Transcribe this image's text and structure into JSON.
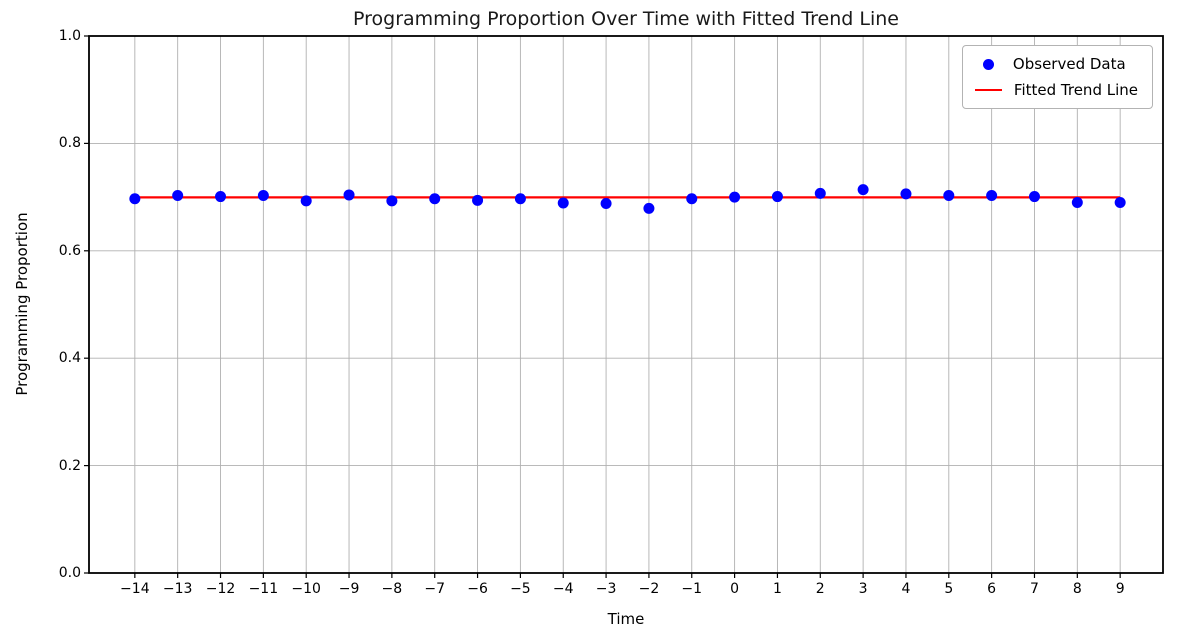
{
  "chart_data": {
    "type": "scatter",
    "title": "Programming Proportion Over Time with Fitted Trend Line",
    "xlabel": "Time",
    "ylabel": "Programming Proportion",
    "xlim": [
      -15.07,
      10.0
    ],
    "ylim": [
      0.0,
      1.0
    ],
    "grid": true,
    "legend_position": "upper right",
    "x": [
      -14,
      -13,
      -12,
      -11,
      -10,
      -9,
      -8,
      -7,
      -6,
      -5,
      -4,
      -3,
      -2,
      -1,
      0,
      1,
      2,
      3,
      4,
      5,
      6,
      7,
      8,
      9
    ],
    "y": [
      0.697,
      0.703,
      0.701,
      0.703,
      0.693,
      0.704,
      0.693,
      0.697,
      0.694,
      0.697,
      0.689,
      0.688,
      0.679,
      0.697,
      0.7,
      0.701,
      0.707,
      0.714,
      0.706,
      0.703,
      0.703,
      0.701,
      0.69,
      0.69
    ],
    "points_label": "Observed Data",
    "points_color": "#0000ff",
    "trend_line": {
      "label": "Fitted Trend Line",
      "color": "#ff0000",
      "x": [
        -14,
        9
      ],
      "y": [
        0.6995,
        0.6995
      ]
    },
    "xticks": {
      "values": [
        -14,
        -13,
        -12,
        -11,
        -10,
        -9,
        -8,
        -7,
        -6,
        -5,
        -4,
        -3,
        -2,
        -1,
        0,
        1,
        2,
        3,
        4,
        5,
        6,
        7,
        8,
        9
      ],
      "labels": [
        "−14",
        "−13",
        "−12",
        "−11",
        "−10",
        "−9",
        "−8",
        "−7",
        "−6",
        "−5",
        "−4",
        "−3",
        "−2",
        "−1",
        "0",
        "1",
        "2",
        "3",
        "4",
        "5",
        "6",
        "7",
        "8",
        "9"
      ]
    },
    "yticks": {
      "values": [
        0.0,
        0.2,
        0.4,
        0.6,
        0.8,
        1.0
      ],
      "labels": [
        "0.0",
        "0.2",
        "0.4",
        "0.6",
        "0.8",
        "1.0"
      ]
    },
    "legend": [
      {
        "label": "Observed Data",
        "marker": "dot",
        "color": "#0000ff"
      },
      {
        "label": "Fitted Trend Line",
        "marker": "line",
        "color": "#ff0000"
      }
    ],
    "colors": {
      "grid": "#b0b0b0",
      "frame": "#000000",
      "background": "#ffffff"
    }
  }
}
